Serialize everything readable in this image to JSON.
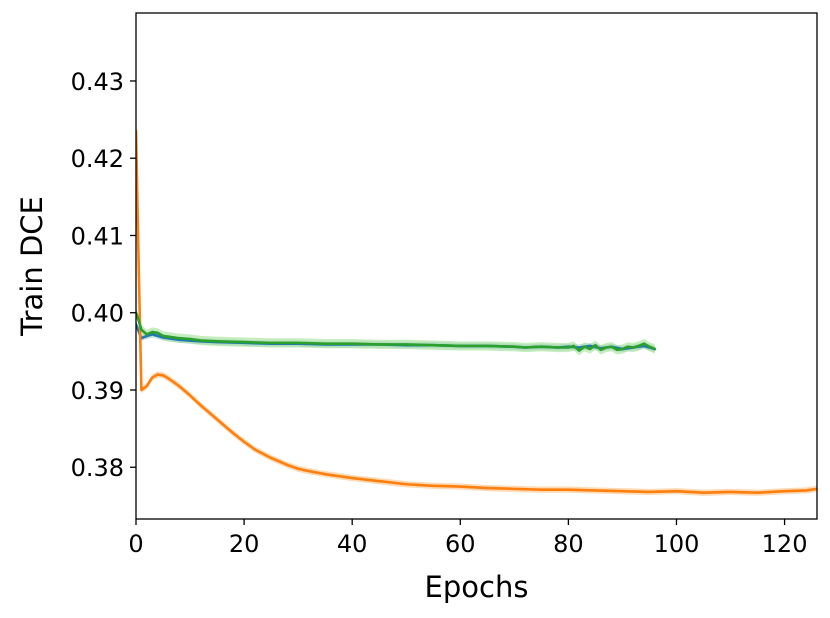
{
  "chart_data": {
    "type": "line",
    "title": "",
    "xlabel": "Epochs",
    "ylabel": "Train DCE",
    "xlim": [
      0,
      126
    ],
    "ylim": [
      0.3733,
      0.4388
    ],
    "grid": false,
    "legend": "none",
    "x_ticks": [
      0,
      20,
      40,
      60,
      80,
      100,
      120
    ],
    "x_tick_labels": [
      "0",
      "20",
      "40",
      "60",
      "80",
      "100",
      "120"
    ],
    "y_ticks": [
      0.38,
      0.39,
      0.4,
      0.41,
      0.42,
      0.43
    ],
    "y_tick_labels": [
      "0.38",
      "0.39",
      "0.40",
      "0.41",
      "0.42",
      "0.43"
    ],
    "series": [
      {
        "color": "#1f77b4",
        "band_color": "#aec7e8",
        "x": [
          0,
          1,
          2,
          3,
          4,
          5,
          6,
          8,
          10,
          12,
          15,
          20,
          25,
          30,
          35,
          40,
          45,
          50,
          55,
          60,
          65,
          70,
          72,
          75,
          78,
          80,
          82,
          84,
          86,
          88,
          90,
          92,
          94,
          96
        ],
        "y": [
          0.3985,
          0.3967,
          0.397,
          0.3972,
          0.397,
          0.3968,
          0.3967,
          0.3965,
          0.3964,
          0.3963,
          0.3962,
          0.3961,
          0.396,
          0.396,
          0.3959,
          0.3959,
          0.3959,
          0.3958,
          0.3958,
          0.3957,
          0.3957,
          0.3956,
          0.3955,
          0.3956,
          0.3955,
          0.3956,
          0.3955,
          0.3957,
          0.3954,
          0.3956,
          0.3953,
          0.3955,
          0.3957,
          0.3953
        ],
        "band": 0.0004
      },
      {
        "color": "#ff7f0e",
        "band_color": "#ffbb78",
        "x": [
          0,
          0.5,
          1,
          2,
          3,
          4,
          5,
          6,
          8,
          10,
          12,
          15,
          18,
          20,
          22,
          25,
          28,
          30,
          32,
          35,
          38,
          40,
          45,
          50,
          55,
          60,
          65,
          70,
          75,
          80,
          85,
          90,
          95,
          100,
          105,
          110,
          115,
          120,
          124,
          126
        ],
        "y": [
          0.4235,
          0.406,
          0.39,
          0.3905,
          0.3916,
          0.392,
          0.3919,
          0.3915,
          0.3905,
          0.3893,
          0.388,
          0.3862,
          0.3844,
          0.3833,
          0.3823,
          0.3812,
          0.3803,
          0.3798,
          0.3795,
          0.3791,
          0.3788,
          0.3786,
          0.3782,
          0.3778,
          0.3776,
          0.3775,
          0.3773,
          0.3772,
          0.3771,
          0.3771,
          0.377,
          0.3769,
          0.3768,
          0.3769,
          0.3767,
          0.3768,
          0.3767,
          0.3769,
          0.377,
          0.3772
        ],
        "band": 0.0004
      },
      {
        "color": "#2ca02c",
        "band_color": "#98df8a",
        "x": [
          0,
          0.5,
          1,
          2,
          3,
          4,
          5,
          6,
          8,
          10,
          12,
          15,
          20,
          25,
          30,
          35,
          40,
          45,
          50,
          55,
          60,
          65,
          70,
          72,
          75,
          78,
          80,
          81,
          82,
          83,
          84,
          85,
          86,
          87,
          88,
          89,
          90,
          91,
          92,
          93,
          94,
          95,
          96
        ],
        "y": [
          0.4,
          0.399,
          0.3978,
          0.3972,
          0.3975,
          0.3974,
          0.397,
          0.3969,
          0.3967,
          0.3966,
          0.3964,
          0.3963,
          0.3962,
          0.3961,
          0.3961,
          0.396,
          0.396,
          0.3959,
          0.3959,
          0.3958,
          0.3957,
          0.3957,
          0.3956,
          0.3955,
          0.3956,
          0.3955,
          0.3955,
          0.3957,
          0.3951,
          0.3956,
          0.3953,
          0.3958,
          0.3952,
          0.3955,
          0.3956,
          0.3952,
          0.3953,
          0.3956,
          0.3955,
          0.3957,
          0.396,
          0.3956,
          0.3953
        ],
        "band": 0.0006
      }
    ]
  }
}
